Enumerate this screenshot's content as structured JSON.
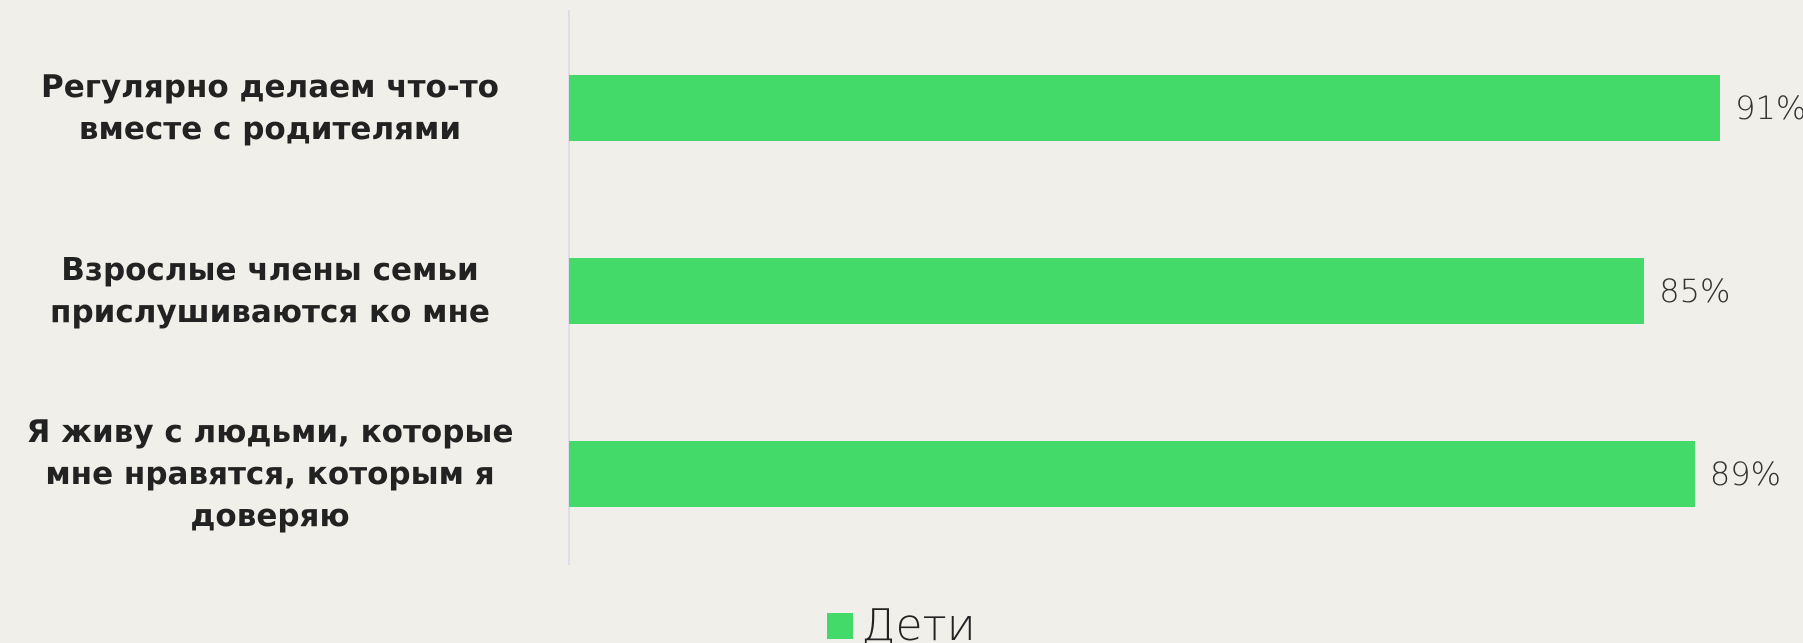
{
  "chart_data": {
    "type": "barh",
    "categories": [
      "Регулярно делаем что-то\nвместе с родителями",
      "Взрослые члены  семьи\nприслушиваются ко мне",
      "Я живу с людьми, которые\nмне нравятся, которым я\nдоверяю"
    ],
    "series": [
      {
        "name": "Дети",
        "color": "#44da6a",
        "values": [
          91,
          85,
          89
        ],
        "value_labels": [
          "91%",
          "85%",
          "89%"
        ]
      }
    ],
    "xlim": [
      0,
      100
    ],
    "legend": "bottom"
  }
}
